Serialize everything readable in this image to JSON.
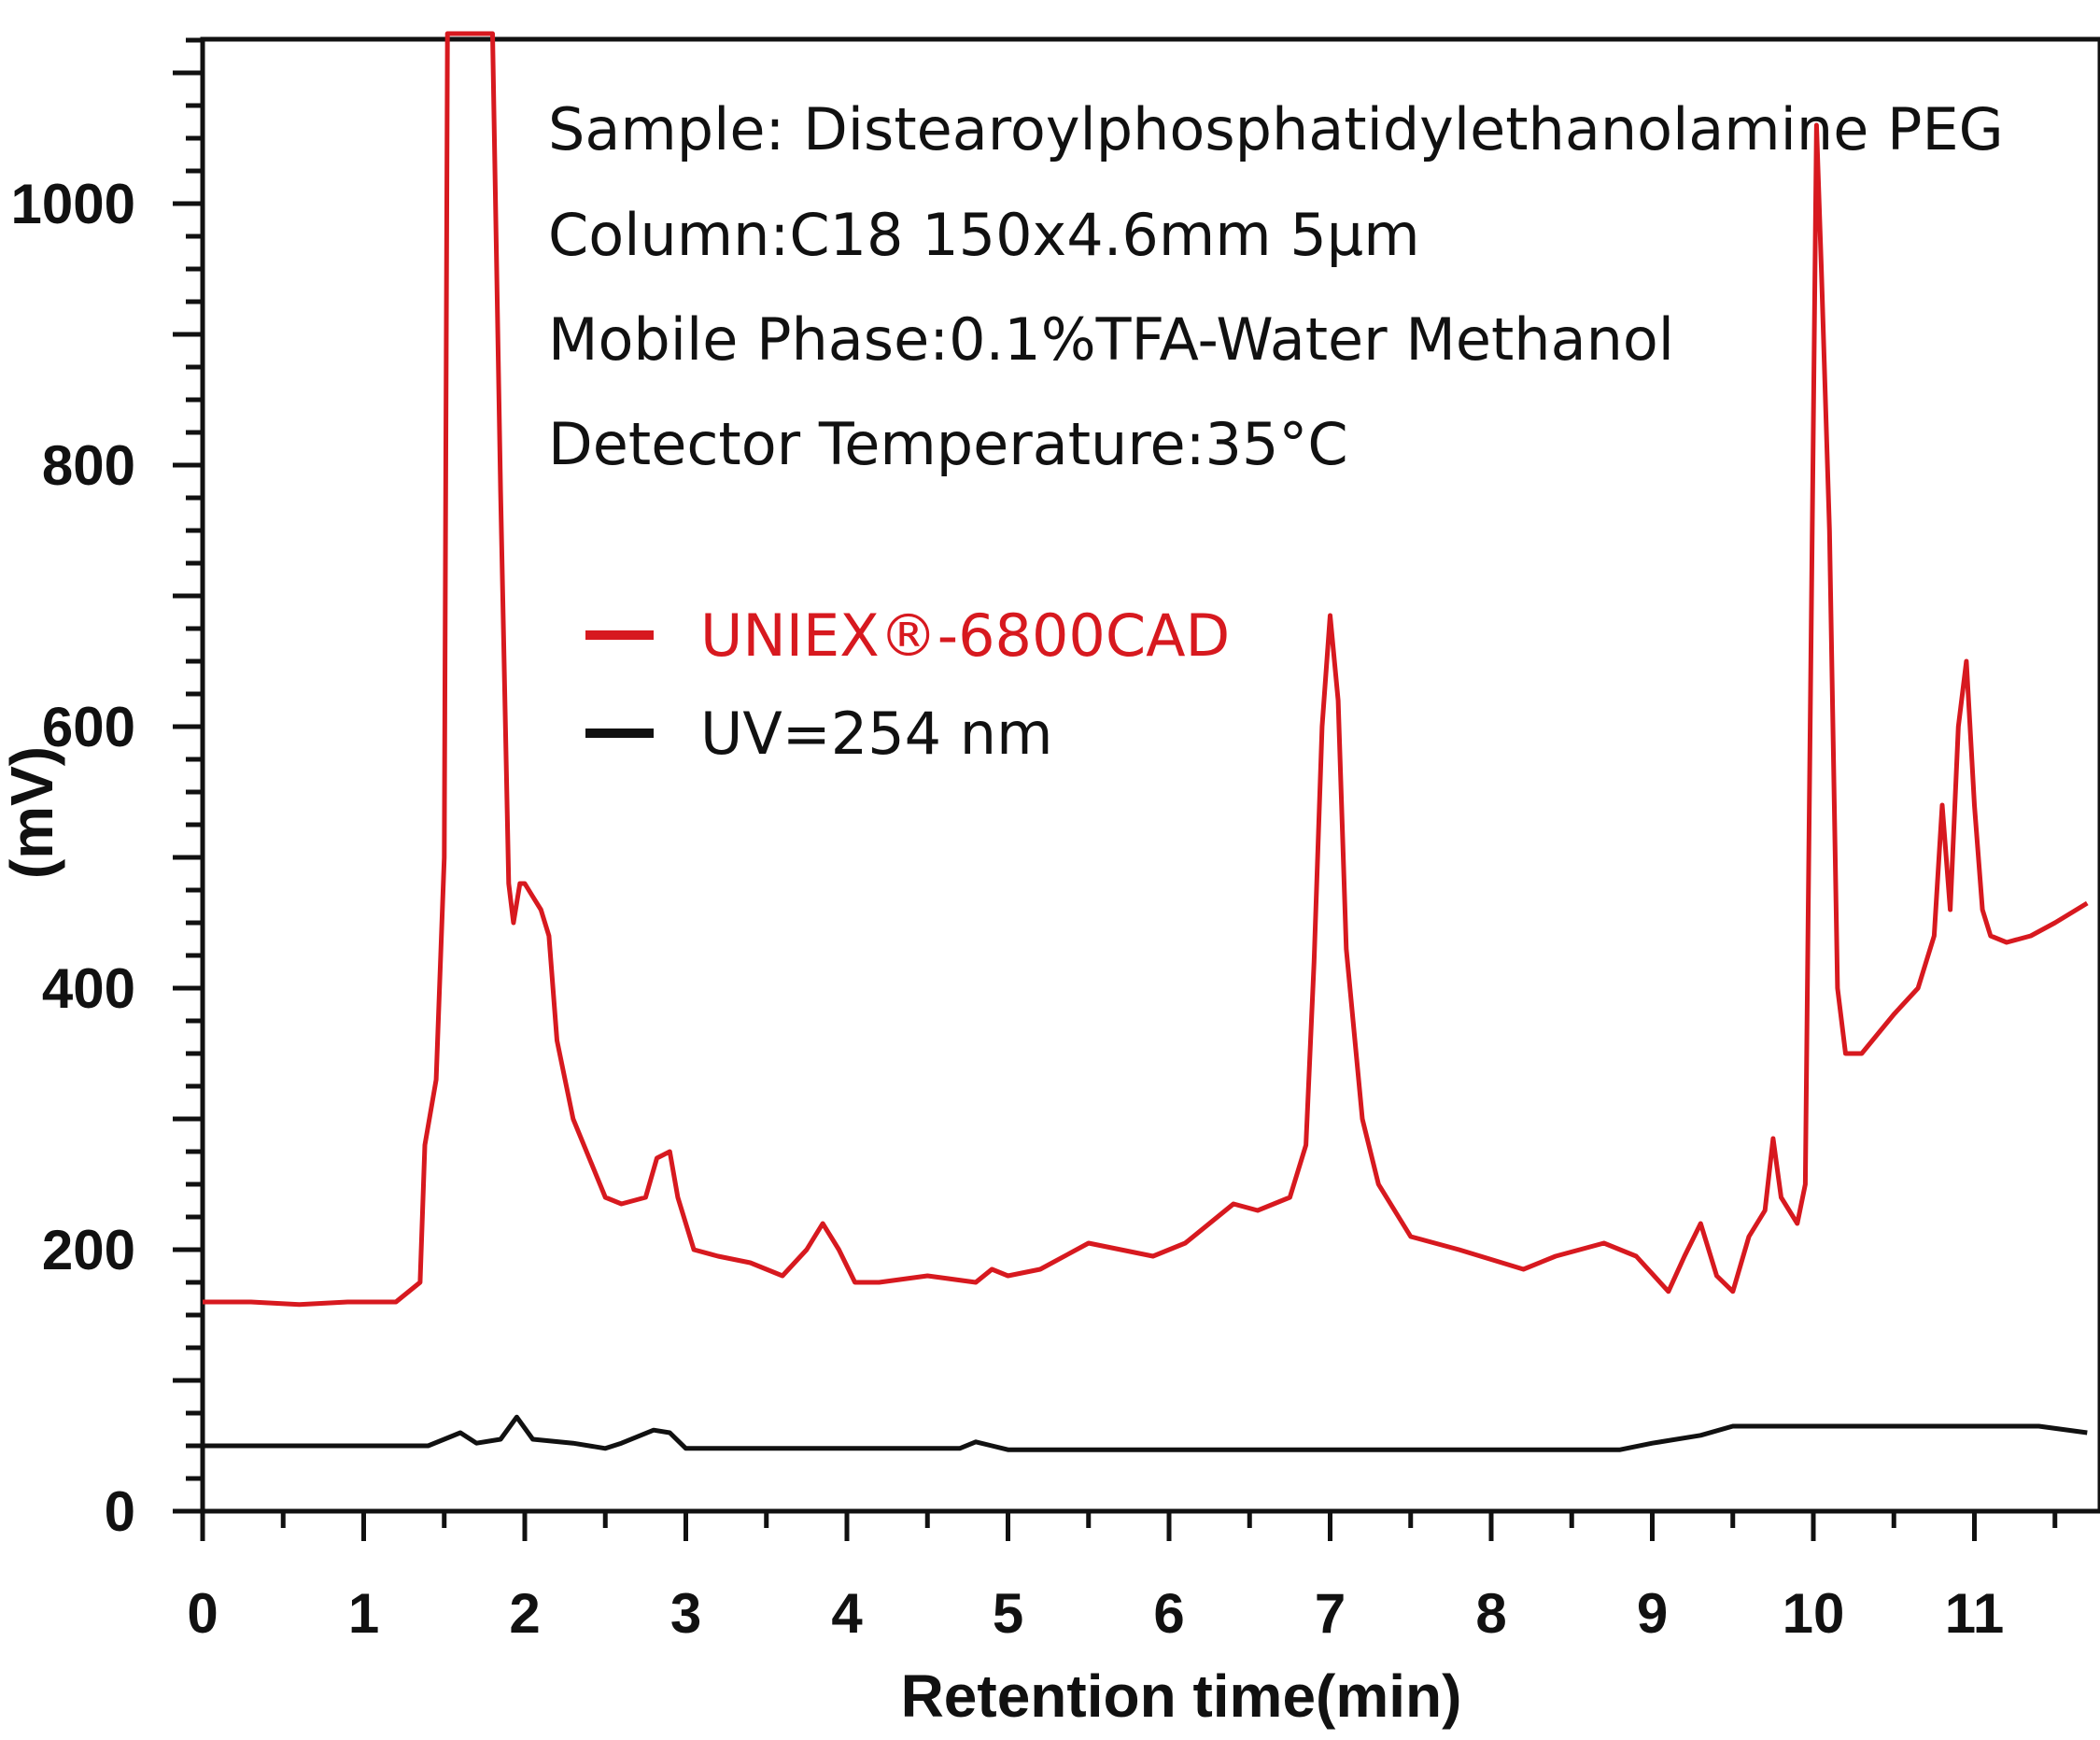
{
  "chart_data": {
    "type": "line",
    "xlabel": "Retention time(min)",
    "ylabel": "(mV)",
    "xlim": [
      0,
      11.7
    ],
    "ylim": [
      0,
      1130
    ],
    "x_ticks": [
      0,
      1,
      2,
      3,
      4,
      5,
      6,
      7,
      8,
      9,
      10,
      11
    ],
    "y_ticks": [
      0,
      200,
      400,
      600,
      800,
      1000
    ],
    "annotations": [
      "Sample: Distearoylphosphatidylethanolamine PEG",
      "Column:C18 150x4.6mm 5µm",
      "Mobile Phase:0.1%TFA-Water Methanol",
      "Detector Temperature:35°C"
    ],
    "legend": [
      {
        "label": "UNIEX®-6800CAD",
        "color": "#d7191f"
      },
      {
        "label": "UV=254 nm",
        "color": "#111111"
      }
    ],
    "series": [
      {
        "name": "UNIEX®-6800CAD",
        "color": "#d7191f",
        "x": [
          0,
          0.3,
          0.6,
          0.9,
          1.2,
          1.35,
          1.38,
          1.45,
          1.5,
          1.52,
          1.55,
          1.6,
          1.65,
          1.7,
          1.75,
          1.8,
          1.85,
          1.9,
          1.93,
          1.97,
          2.0,
          2.05,
          2.1,
          2.15,
          2.2,
          2.3,
          2.5,
          2.6,
          2.75,
          2.82,
          2.9,
          2.95,
          3.05,
          3.2,
          3.4,
          3.6,
          3.75,
          3.85,
          3.95,
          4.05,
          4.2,
          4.5,
          4.8,
          4.9,
          5.0,
          5.2,
          5.5,
          5.7,
          5.9,
          6.1,
          6.3,
          6.4,
          6.55,
          6.75,
          6.85,
          6.9,
          6.95,
          7.0,
          7.05,
          7.1,
          7.2,
          7.3,
          7.5,
          7.8,
          8.2,
          8.4,
          8.7,
          8.9,
          9.1,
          9.2,
          9.3,
          9.4,
          9.5,
          9.6,
          9.7,
          9.75,
          9.8,
          9.9,
          9.95,
          9.98,
          10.02,
          10.05,
          10.1,
          10.15,
          10.2,
          10.3,
          10.5,
          10.65,
          10.75,
          10.8,
          10.85,
          10.9,
          10.95,
          11.0,
          11.05,
          11.1,
          11.2,
          11.35,
          11.5,
          11.7
        ],
        "values": [
          160,
          160,
          158,
          160,
          160,
          175,
          280,
          330,
          500,
          1130,
          1130,
          1130,
          1130,
          1130,
          1130,
          1130,
          780,
          480,
          450,
          480,
          480,
          470,
          460,
          440,
          360,
          300,
          240,
          235,
          240,
          270,
          275,
          240,
          200,
          195,
          190,
          180,
          200,
          220,
          200,
          175,
          175,
          180,
          175,
          185,
          180,
          185,
          205,
          200,
          195,
          205,
          225,
          235,
          230,
          240,
          280,
          420,
          600,
          685,
          620,
          430,
          300,
          250,
          210,
          200,
          185,
          195,
          205,
          195,
          168,
          195,
          220,
          180,
          168,
          210,
          230,
          285,
          240,
          220,
          250,
          600,
          1060,
          950,
          750,
          400,
          350,
          350,
          380,
          400,
          440,
          540,
          460,
          600,
          650,
          540,
          460,
          440,
          435,
          440,
          450,
          465
        ]
      },
      {
        "name": "UV=254 nm",
        "color": "#111111",
        "x": [
          0,
          1.4,
          1.5,
          1.6,
          1.7,
          1.85,
          1.95,
          2.05,
          2.3,
          2.5,
          2.6,
          2.8,
          2.9,
          3.0,
          3.2,
          4.7,
          4.8,
          4.9,
          5.0,
          8.8,
          9.0,
          9.3,
          9.5,
          9.7,
          11.0,
          11.4,
          11.7
        ],
        "values": [
          50,
          50,
          55,
          60,
          52,
          55,
          72,
          55,
          52,
          48,
          52,
          62,
          60,
          48,
          48,
          48,
          53,
          50,
          47,
          47,
          52,
          58,
          65,
          65,
          65,
          65,
          60
        ]
      }
    ]
  }
}
